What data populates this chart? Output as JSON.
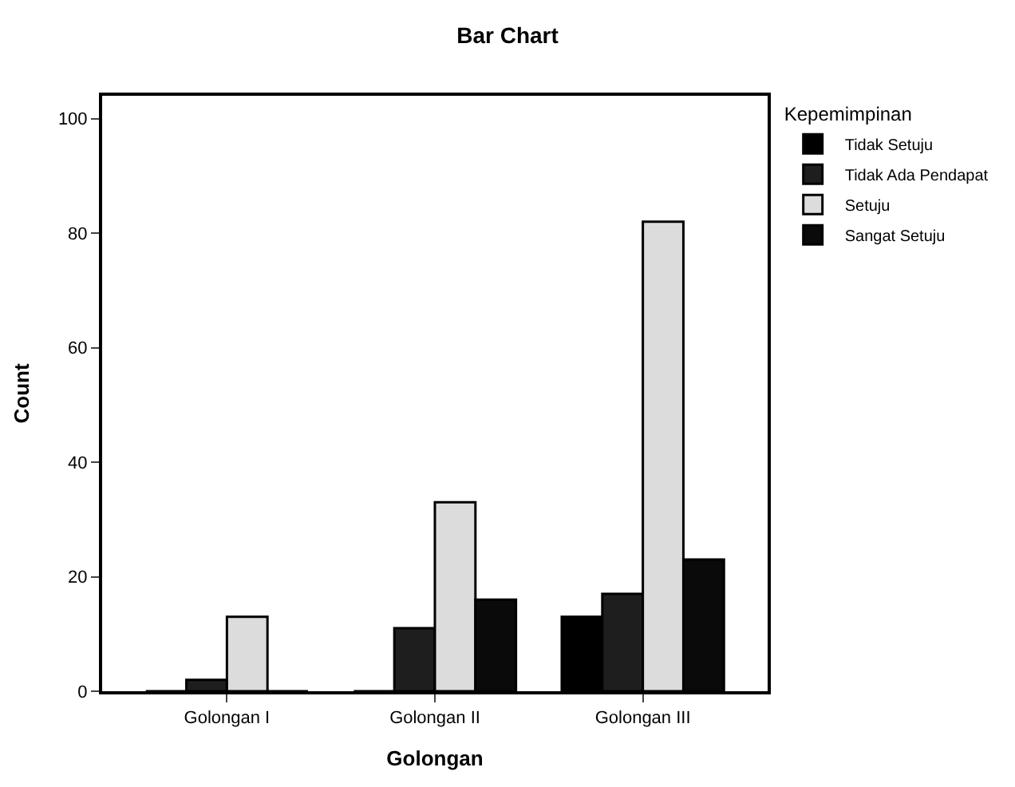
{
  "chart_data": {
    "type": "bar",
    "title": "Bar Chart",
    "xlabel": "Golongan",
    "ylabel": "Count",
    "legend_title": "Kepemimpinan",
    "categories": [
      "Golongan I",
      "Golongan II",
      "Golongan III"
    ],
    "series": [
      {
        "name": "Tidak Setuju",
        "color": "#000000",
        "values": [
          0,
          0,
          13
        ]
      },
      {
        "name": "Tidak Ada Pendapat",
        "color": "#1e1e1e",
        "values": [
          2,
          11,
          17
        ]
      },
      {
        "name": "Setuju",
        "color": "#dcdcdc",
        "values": [
          13,
          33,
          82
        ]
      },
      {
        "name": "Sangat Setuju",
        "color": "#0a0a0a",
        "values": [
          0,
          16,
          23
        ]
      }
    ],
    "ylim": [
      0,
      104
    ],
    "yticks": [
      0,
      20,
      40,
      60,
      80,
      100
    ],
    "grid": false,
    "legend": "top right"
  }
}
